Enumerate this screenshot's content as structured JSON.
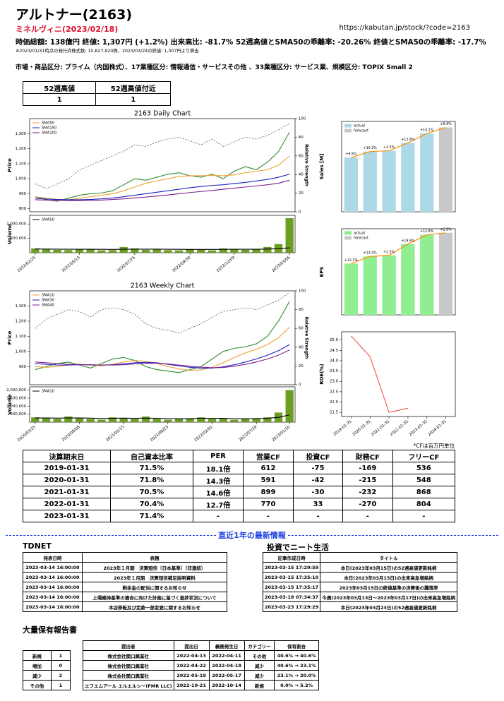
{
  "header": {
    "title": "アルトナー(2163)",
    "subtitle": "ミネルヴィニ(2023/02/18)",
    "url": "https://kabutan.jp/stock/?code=2163",
    "summary": "時価総額: 138億円  終値: 1,307円 (+1.2%)  出来高比: -81.7%  52週高値とSMA50の乖離率: -20.26%  終値とSMA50の乖離率: -17.7%",
    "note": "※2023/01/31時点の発行済株式数: 10,627,920株、2023/03/24の終値: 1,307円より算出",
    "sectors": "市場・商品区分: プライム（内国株式）、17業種区分: 情報通信・サービスその他 、33業種区分: サービス業、規模区分: TOPIX Small 2"
  },
  "high_table": {
    "headers": [
      "52週高値",
      "52週高値付近"
    ],
    "rows": [
      [
        "1",
        "1"
      ]
    ]
  },
  "chart_data": [
    {
      "type": "line",
      "title": "2163 Daily Chart",
      "ylabel": "Price",
      "y2label": "Relative Strength",
      "ylim": [
        780,
        1400
      ],
      "yticks": [
        800,
        900,
        {
          "value": 1000,
          "label": "1,000"
        },
        {
          "value": 1100,
          "label": "1,100"
        },
        {
          "value": 1200,
          "label": "1,200"
        },
        {
          "value": 1300,
          "label": "1,300"
        }
      ],
      "y2lim": [
        0,
        100
      ],
      "y2ticks": [
        0,
        20,
        40,
        60,
        80,
        100
      ],
      "series": [
        {
          "color": "#2e8b2e",
          "values": [
            880,
            860,
            850,
            870,
            890,
            900,
            905,
            920,
            960,
            1000,
            990,
            1010,
            1030,
            1040,
            1020,
            1010,
            1030,
            1000,
            1050,
            1080,
            1060,
            1110,
            1180,
            1310
          ]
        },
        {
          "name": "SMA50",
          "color": "#f0a030",
          "values": [
            880,
            870,
            862,
            860,
            870,
            880,
            890,
            900,
            920,
            945,
            970,
            985,
            1000,
            1015,
            1020,
            1020,
            1022,
            1020,
            1025,
            1040,
            1050,
            1060,
            1090,
            1150
          ]
        },
        {
          "name": "SMA150",
          "color": "#2020c0",
          "values": [
            870,
            865,
            862,
            860,
            860,
            862,
            866,
            872,
            880,
            890,
            900,
            910,
            920,
            930,
            940,
            948,
            955,
            960,
            968,
            975,
            985,
            995,
            1010,
            1030
          ]
        },
        {
          "name": "SMA200",
          "color": "#7a1f8a",
          "values": [
            860,
            858,
            856,
            855,
            855,
            856,
            858,
            862,
            866,
            872,
            878,
            885,
            892,
            900,
            908,
            915,
            922,
            930,
            937,
            945,
            952,
            960,
            970,
            990
          ]
        },
        {
          "axis": "y2",
          "color": "#444444",
          "dash": "2,2",
          "values": [
            30,
            25,
            30,
            35,
            45,
            50,
            55,
            60,
            65,
            72,
            70,
            75,
            78,
            80,
            76,
            72,
            78,
            70,
            75,
            80,
            78,
            82,
            88,
            95
          ]
        }
      ]
    },
    {
      "type": "bar",
      "ylabel": "Volume",
      "color": "#6b9e23",
      "categories": [
        "2022/02/25",
        null,
        null,
        null,
        "2022/05/13",
        null,
        null,
        null,
        null,
        "2022/07/25",
        null,
        null,
        null,
        null,
        "2022/09/30",
        null,
        null,
        null,
        "2022/12/09",
        null,
        null,
        null,
        null,
        "2023/03/06"
      ],
      "values": [
        150000,
        120000,
        100000,
        90000,
        110000,
        130000,
        80000,
        90000,
        200000,
        150000,
        100000,
        120000,
        90000,
        80000,
        110000,
        100000,
        80000,
        150000,
        120000,
        100000,
        130000,
        200000,
        300000,
        1200000
      ],
      "ylim": [
        0,
        1300000
      ],
      "yticks": [
        {
          "value": 500000,
          "label": "500,000"
        },
        {
          "value": 1000000,
          "label": "1,000,000"
        }
      ],
      "series": [
        {
          "name": "SMA50",
          "style": "line",
          "color": "#000000",
          "values": [
            130000,
            128000,
            125000,
            122000,
            120000,
            120000,
            118000,
            115000,
            120000,
            125000,
            125000,
            124000,
            120000,
            118000,
            116000,
            115000,
            114000,
            118000,
            120000,
            120000,
            122000,
            128000,
            140000,
            170000
          ]
        }
      ]
    },
    {
      "type": "line",
      "title": "2163 Weekly Chart",
      "ylabel": "Price",
      "y2label": "Relative Strength",
      "ylim": [
        780,
        1400
      ],
      "yticks": [
        900,
        {
          "value": 1000,
          "label": "1,000"
        },
        {
          "value": 1100,
          "label": "1,100"
        },
        {
          "value": 1200,
          "label": "1,200"
        },
        {
          "value": 1300,
          "label": "1,300"
        }
      ],
      "y2lim": [
        0,
        100
      ],
      "y2ticks": [
        0,
        20,
        40,
        60,
        80,
        100
      ],
      "series": [
        {
          "color": "#2e8b2e",
          "values": [
            880,
            900,
            920,
            930,
            910,
            890,
            920,
            950,
            960,
            940,
            900,
            880,
            870,
            860,
            880,
            900,
            950,
            1000,
            1020,
            1030,
            1050,
            1100,
            1200,
            1330
          ]
        },
        {
          "name": "SMA10",
          "color": "#f0a030",
          "values": [
            900,
            895,
            900,
            910,
            915,
            910,
            905,
            915,
            930,
            940,
            935,
            920,
            900,
            885,
            875,
            878,
            895,
            925,
            960,
            990,
            1015,
            1045,
            1090,
            1160
          ]
        },
        {
          "name": "SMA30",
          "color": "#2020c0",
          "values": [
            920,
            915,
            910,
            910,
            912,
            912,
            910,
            912,
            918,
            925,
            928,
            925,
            915,
            905,
            895,
            890,
            890,
            898,
            912,
            930,
            950,
            975,
            1005,
            1045
          ]
        },
        {
          "name": "SMA40",
          "color": "#7a1f8a",
          "values": [
            930,
            925,
            920,
            915,
            913,
            912,
            910,
            910,
            912,
            918,
            922,
            922,
            918,
            910,
            902,
            896,
            892,
            894,
            902,
            915,
            930,
            950,
            975,
            1010
          ]
        },
        {
          "axis": "y2",
          "color": "#444444",
          "dash": "2,2",
          "values": [
            60,
            70,
            75,
            80,
            78,
            72,
            80,
            82,
            80,
            75,
            65,
            60,
            58,
            55,
            60,
            65,
            72,
            78,
            80,
            82,
            80,
            85,
            90,
            98
          ]
        }
      ]
    },
    {
      "type": "bar",
      "ylabel": "Volume",
      "color": "#6b9e23",
      "categories": [
        "2020/03/25",
        null,
        null,
        null,
        "2020/09/08",
        null,
        null,
        null,
        "2021/02/15",
        null,
        null,
        null,
        "2021/08/23",
        null,
        null,
        null,
        "2022/02/02",
        null,
        null,
        null,
        "2022/07/19",
        null,
        null,
        "2023/01/10"
      ],
      "values": [
        300000,
        250000,
        200000,
        350000,
        250000,
        200000,
        150000,
        300000,
        250000,
        200000,
        350000,
        200000,
        150000,
        200000,
        250000,
        300000,
        200000,
        250000,
        150000,
        200000,
        250000,
        300000,
        600000,
        2000000
      ],
      "ylim": [
        0,
        2200000
      ],
      "yticks": [
        {
          "value": 500000,
          "label": "500,000"
        },
        {
          "value": 1000000,
          "label": "1,000,000"
        },
        {
          "value": 1500000,
          "label": "1,500,000"
        },
        {
          "value": 2000000,
          "label": "2,000,000"
        }
      ],
      "series": [
        {
          "name": "SMA10",
          "style": "line",
          "color": "#000000",
          "values": [
            260000,
            260000,
            250000,
            260000,
            260000,
            250000,
            230000,
            240000,
            250000,
            240000,
            250000,
            240000,
            220000,
            210000,
            220000,
            240000,
            240000,
            240000,
            220000,
            210000,
            220000,
            240000,
            300000,
            450000
          ]
        }
      ]
    },
    {
      "type": "bar",
      "ylabel": "Sales [M]",
      "ylim": [
        0,
        10500
      ],
      "trend_color": "#ff8c00",
      "growth_labels": [
        "+9.8%",
        "+10.2%",
        "+2.5%",
        "+12.9%",
        "+14.1%",
        "+6.9%"
      ],
      "series": [
        {
          "name": "actual",
          "color": "#add8e6",
          "values": [
            6300,
            7000,
            7100,
            8000,
            9100,
            null
          ]
        },
        {
          "name": "forecast",
          "color": "#c8c8c8",
          "values": [
            null,
            null,
            null,
            null,
            null,
            9800
          ]
        }
      ]
    },
    {
      "type": "bar",
      "ylabel": "EPS",
      "ylim": [
        0,
        84
      ],
      "trend_color": "#ff8c00",
      "growth_labels": [
        "+12.1%",
        "+13.4%",
        "+2.5%",
        "+19.9%",
        "+12.8%",
        "+2.9%"
      ],
      "series": [
        {
          "name": "actual",
          "color": "#90ee90",
          "values": [
            50,
            57,
            58,
            69,
            78,
            null
          ]
        },
        {
          "name": "forecast",
          "color": "#c8c8c8",
          "values": [
            null,
            null,
            null,
            null,
            null,
            80
          ]
        }
      ]
    },
    {
      "type": "line",
      "ylabel": "ROE(%)",
      "ylim": [
        21.3,
        25.4
      ],
      "yticks": [
        21.5,
        {
          "value": 22,
          "label": "22.0"
        },
        22.5,
        {
          "value": 23,
          "label": "23.0"
        },
        23.5,
        {
          "value": 24,
          "label": "24.0"
        },
        24.5,
        {
          "value": 25,
          "label": "25.0"
        }
      ],
      "categories": [
        "2019-01-31",
        "2020-01-31",
        "2021-01-31",
        "2022-01-31",
        "2023-01-31",
        "2024-01-31"
      ],
      "series": [
        {
          "color": "#f0504a",
          "values": [
            25.2,
            24.2,
            21.5,
            21.7,
            null,
            null
          ]
        }
      ]
    }
  ],
  "fin_note": "*CFは百万円単位",
  "fin_table": {
    "headers": [
      "決算期末日",
      "自己資本比率",
      "PER",
      "営業CF",
      "投資CF",
      "財務CF",
      "フリーCF"
    ],
    "rows": [
      [
        "2019-01-31",
        "71.5%",
        "18.1倍",
        "612",
        "-75",
        "-169",
        "536"
      ],
      [
        "2020-01-31",
        "71.8%",
        "14.3倍",
        "591",
        "-42",
        "-215",
        "548"
      ],
      [
        "2021-01-31",
        "70.5%",
        "14.6倍",
        "899",
        "-30",
        "-232",
        "868"
      ],
      [
        "2022-01-31",
        "70.4%",
        "12.7倍",
        "770",
        "33",
        "-270",
        "804"
      ],
      [
        "2023-01-31",
        "71.4%",
        "-",
        "-",
        "-",
        "-",
        "-"
      ]
    ]
  },
  "section_title": "直近1年の最新情報",
  "tdnet": {
    "title": "TDNET",
    "headers": [
      "発表日時",
      "表題"
    ],
    "rows": [
      [
        "2023-03-14 16:00:00",
        "2023年１月期　決算短信〔日本基準〕（非連結）"
      ],
      [
        "2023-03-14 16:00:00",
        "2023年１月期　決算短信補足説明資料"
      ],
      [
        "2023-03-14 16:00:00",
        "剰余金の配当に関するお知らせ"
      ],
      [
        "2023-03-14 16:00:00",
        "上場維持基準の適合に向けた計画に基づく進捗状況について"
      ],
      [
        "2023-03-14 16:00:00",
        "本店移転及び定款一部変更に関するお知らせ"
      ]
    ]
  },
  "blog": {
    "title": "投資でニート生活",
    "headers": [
      "記事作成日時",
      "タイトル"
    ],
    "rows": [
      [
        "2023-03-15 17:29:59",
        "本日(2023年03月15日)の52週高値更新銘柄"
      ],
      [
        "2023-03-15 17:35:10",
        "本日(2023年03月15日)の出来高急増銘柄"
      ],
      [
        "2023-03-15 17:35:17",
        "2023年03月15日の終値基準の決算後の騰落率"
      ],
      [
        "2023-03-18 07:34:37",
        "今週(2023年03月13日～2023年03月17日)の出来高急増銘柄"
      ],
      [
        "2023-03-23 17:29:29",
        "本日(2023年03月23日)の52週高値更新銘柄"
      ]
    ]
  },
  "holdings": {
    "title": "大量保有報告書",
    "summary": {
      "rows": [
        [
          "新規",
          "1"
        ],
        [
          "増加",
          "0"
        ],
        [
          "減少",
          "2"
        ],
        [
          "その他",
          "1"
        ]
      ]
    },
    "table": {
      "headers": [
        "提出者",
        "提出日",
        "義務発生日",
        "カテゴリー",
        "保有割合"
      ],
      "rows": [
        [
          "株式会社関口興業社",
          "2022-04-13",
          "2022-04-11",
          "その他",
          "40.6% → 40.6%"
        ],
        [
          "株式会社関口興業社",
          "2022-04-22",
          "2022-04-18",
          "減少",
          "40.6% → 23.1%"
        ],
        [
          "株式会社関口興業社",
          "2022-05-19",
          "2022-05-17",
          "減少",
          "23.1% → 20.0%"
        ],
        [
          "エフエムアール エルエルシー(FMR LLC)",
          "2022-10-21",
          "2022-10-14",
          "新規",
          "0.0% → 5.2%"
        ]
      ]
    }
  }
}
